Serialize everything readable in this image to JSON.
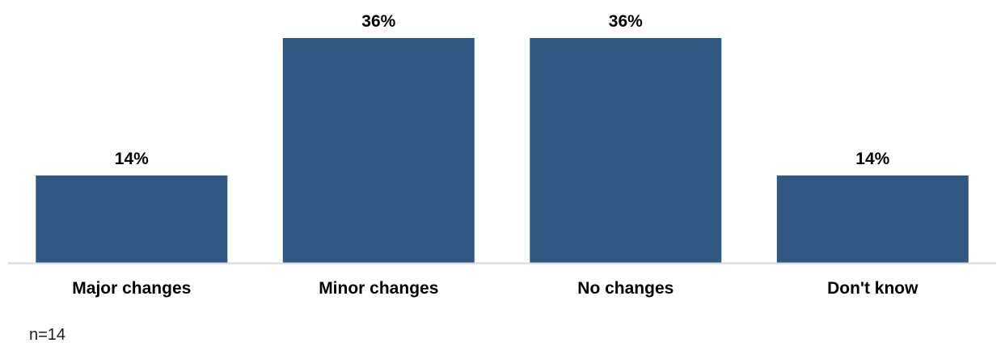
{
  "chart_data": {
    "type": "bar",
    "categories": [
      "Major changes",
      "Minor changes",
      "No changes",
      "Don't know"
    ],
    "values": [
      14,
      36,
      36,
      14
    ],
    "value_labels": [
      "14%",
      "36%",
      "36%",
      "14%"
    ],
    "ylim": [
      0,
      36
    ],
    "grid": false,
    "bar_color": "#2f5982",
    "axis_color": "#d9d9d9"
  },
  "footnote": "n=14"
}
